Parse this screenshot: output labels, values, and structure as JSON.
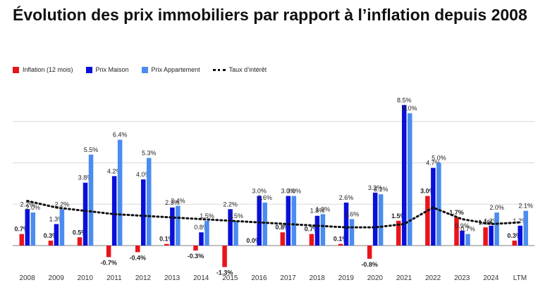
{
  "title": "Évolution des prix immobiliers par rapport à l’inflation depuis 2008",
  "legend": {
    "inflation": "Inflation (12 mois)",
    "maison": "Prix Maison",
    "appartement": "Prix Appartement",
    "taux": "Taux d’intérêt"
  },
  "colors": {
    "inflation": "#e8141a",
    "maison": "#0a10d8",
    "appartement": "#4a8cf0",
    "taux": "#111111",
    "grid": "#d9d9d9"
  },
  "chart_data": {
    "type": "bar",
    "title": "Évolution des prix immobiliers par rapport à l’inflation depuis 2008",
    "categories": [
      "2008",
      "2009",
      "2010",
      "2011",
      "2012",
      "2013",
      "2014",
      "2015",
      "2016",
      "2017",
      "2018",
      "2019",
      "2020",
      "2021",
      "2022",
      "2023",
      "2024",
      "LTM"
    ],
    "series": [
      {
        "name": "Inflation (12 mois)",
        "kind": "bar",
        "values": [
          0.7,
          0.3,
          0.5,
          -0.7,
          -0.4,
          0.1,
          -0.3,
          -1.3,
          0.0,
          0.8,
          0.7,
          0.1,
          -0.8,
          1.5,
          3.0,
          1.7,
          1.1,
          0.3
        ],
        "labels": [
          "0.7%",
          "0.3%",
          "0.5%",
          "-0.7%",
          "-0.4%",
          "0.1%",
          "-0.3%",
          "-1.3%",
          "0.0%",
          "0.8%",
          "0.7%",
          "0.1%",
          "-0.8%",
          "1.5%",
          "3.0%",
          "1.7%",
          "1.1%",
          "0.3%"
        ]
      },
      {
        "name": "Prix Maison",
        "kind": "bar",
        "values": [
          2.2,
          1.3,
          3.8,
          4.2,
          4.0,
          2.3,
          0.8,
          2.2,
          3.0,
          3.0,
          1.8,
          2.6,
          3.2,
          8.5,
          4.7,
          0.9,
          1.2,
          1.2
        ],
        "labels": [
          "2.2%",
          "1.3%",
          "3.8%",
          "4.2%",
          "4.0%",
          "2.3%",
          "0.8%",
          "2.2%",
          "3.0%",
          "3.0%",
          "1.8%",
          "2.6%",
          "3.2%",
          "8.5%",
          "4.7%",
          "0.9%",
          "1.2%",
          "1.2%"
        ]
      },
      {
        "name": "Prix Appartement",
        "kind": "bar",
        "values": [
          2.0,
          2.2,
          5.5,
          6.4,
          5.3,
          2.4,
          1.5,
          1.5,
          2.6,
          3.0,
          1.9,
          1.6,
          3.1,
          8.0,
          5.0,
          0.7,
          2.0,
          2.1
        ],
        "labels": [
          "2.0%",
          "2.2%",
          "5.5%",
          "6.4%",
          "5.3%",
          "2.4%",
          "1.5%",
          "1.5%",
          "2.6%",
          "3.0%",
          "1.9%",
          "1.6%",
          "3.1%",
          "8.0%",
          "5.0%",
          "0.7%",
          "2.0%",
          "2.1%"
        ]
      },
      {
        "name": "Taux d’intérêt",
        "kind": "line",
        "style": "dotted",
        "values": [
          2.7,
          2.3,
          2.1,
          1.9,
          1.8,
          1.7,
          1.6,
          1.5,
          1.4,
          1.3,
          1.2,
          1.1,
          1.1,
          1.3,
          2.3,
          1.6,
          1.3,
          1.4
        ]
      }
    ],
    "ylim": [
      -1.8,
      9.0
    ],
    "gridlines": [
      0,
      2.5,
      5,
      7.5
    ],
    "xlabel": "",
    "ylabel": "",
    "legend_position": "top-left"
  }
}
